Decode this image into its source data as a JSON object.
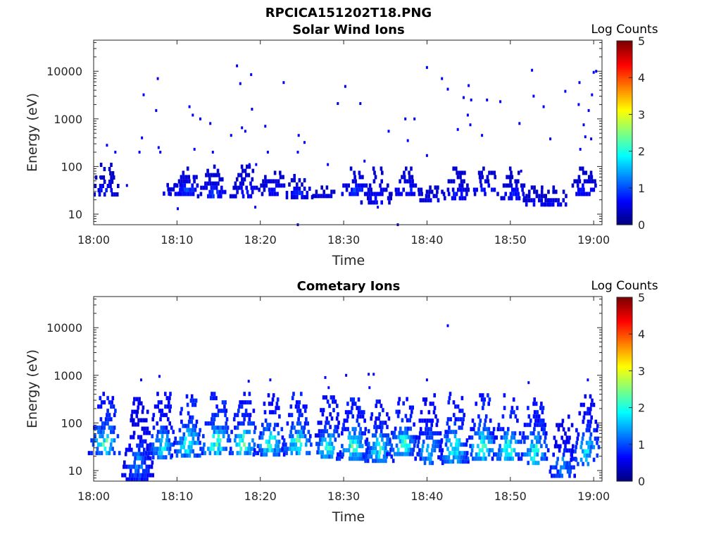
{
  "figure": {
    "title": "RPCICA151202T18.PNG"
  },
  "chart_data": [
    {
      "type": "heatmap",
      "title": "Solar Wind Ions",
      "xlabel": "Time",
      "ylabel": "Energy (eV)",
      "x_ticks": [
        "18:00",
        "18:10",
        "18:20",
        "18:30",
        "18:40",
        "18:50",
        "19:00"
      ],
      "x_tick_minutes": [
        0,
        10,
        20,
        30,
        40,
        50,
        60
      ],
      "xlim_minutes": [
        0,
        61
      ],
      "y_scale": "log",
      "y_ticks": [
        "10",
        "100",
        "1000",
        "10000"
      ],
      "y_tick_values": [
        10,
        100,
        1000,
        10000
      ],
      "ylim": [
        6,
        45000
      ],
      "colorbar": {
        "label": "Log Counts",
        "ticks": [
          "0",
          "1",
          "2",
          "3",
          "4",
          "5"
        ],
        "range": [
          0,
          5
        ],
        "colormap": "jet"
      },
      "bursts": [
        {
          "t": 1.5,
          "e_lo": 25,
          "e_hi": 120,
          "lvl": 0.55
        },
        {
          "t": 9.5,
          "e_lo": 25,
          "e_hi": 45,
          "lvl": 0.7
        },
        {
          "t": 11.3,
          "e_lo": 28,
          "e_hi": 100,
          "lvl": 0.8
        },
        {
          "t": 14.5,
          "e_lo": 22,
          "e_hi": 110,
          "lvl": 0.75
        },
        {
          "t": 18.4,
          "e_lo": 22,
          "e_hi": 110,
          "lvl": 0.6
        },
        {
          "t": 21.7,
          "e_lo": 28,
          "e_hi": 100,
          "lvl": 0.6
        },
        {
          "t": 24.7,
          "e_lo": 25,
          "e_hi": 70,
          "lvl": 0.65
        },
        {
          "t": 28.0,
          "e_lo": 25,
          "e_hi": 40,
          "lvl": 0.4
        },
        {
          "t": 31.5,
          "e_lo": 25,
          "e_hi": 100,
          "lvl": 0.8
        },
        {
          "t": 34.2,
          "e_lo": 18,
          "e_hi": 100,
          "lvl": 0.6
        },
        {
          "t": 37.8,
          "e_lo": 28,
          "e_hi": 100,
          "lvl": 0.7
        },
        {
          "t": 41.0,
          "e_lo": 18,
          "e_hi": 40,
          "lvl": 0.6
        },
        {
          "t": 43.8,
          "e_lo": 20,
          "e_hi": 100,
          "lvl": 0.6
        },
        {
          "t": 47.1,
          "e_lo": 25,
          "e_hi": 100,
          "lvl": 0.7
        },
        {
          "t": 50.6,
          "e_lo": 20,
          "e_hi": 100,
          "lvl": 0.6
        },
        {
          "t": 53.2,
          "e_lo": 15,
          "e_hi": 40,
          "lvl": 0.5
        },
        {
          "t": 55.5,
          "e_lo": 15,
          "e_hi": 40,
          "lvl": 0.5
        },
        {
          "t": 59.0,
          "e_lo": 25,
          "e_hi": 100,
          "lvl": 0.6
        }
      ],
      "points": [
        {
          "t": 0.8,
          "e": 60
        },
        {
          "t": 1.6,
          "e": 280
        },
        {
          "t": 2.6,
          "e": 200
        },
        {
          "t": 4.0,
          "e": 40
        },
        {
          "t": 5.5,
          "e": 200
        },
        {
          "t": 5.8,
          "e": 400
        },
        {
          "t": 6.0,
          "e": 3200
        },
        {
          "t": 7.5,
          "e": 1500
        },
        {
          "t": 7.7,
          "e": 7000
        },
        {
          "t": 7.8,
          "e": 250
        },
        {
          "t": 8.0,
          "e": 200
        },
        {
          "t": 10.1,
          "e": 13
        },
        {
          "t": 11.5,
          "e": 1800
        },
        {
          "t": 11.9,
          "e": 1200
        },
        {
          "t": 12.1,
          "e": 230
        },
        {
          "t": 12.8,
          "e": 1000
        },
        {
          "t": 14.0,
          "e": 800
        },
        {
          "t": 14.3,
          "e": 200
        },
        {
          "t": 16.5,
          "e": 450
        },
        {
          "t": 17.2,
          "e": 13000
        },
        {
          "t": 17.6,
          "e": 5500
        },
        {
          "t": 17.8,
          "e": 650
        },
        {
          "t": 18.2,
          "e": 550
        },
        {
          "t": 18.9,
          "e": 8500
        },
        {
          "t": 18.7,
          "e": 110
        },
        {
          "t": 19.0,
          "e": 1600
        },
        {
          "t": 19.5,
          "e": 110
        },
        {
          "t": 19.4,
          "e": 14
        },
        {
          "t": 20.6,
          "e": 700
        },
        {
          "t": 20.9,
          "e": 200
        },
        {
          "t": 22.8,
          "e": 5800
        },
        {
          "t": 24.6,
          "e": 450
        },
        {
          "t": 24.5,
          "e": 200
        },
        {
          "t": 25.3,
          "e": 320
        },
        {
          "t": 24.5,
          "e": 6
        },
        {
          "t": 28.1,
          "e": 110
        },
        {
          "t": 29.3,
          "e": 2100
        },
        {
          "t": 30.2,
          "e": 4800
        },
        {
          "t": 32.0,
          "e": 2100
        },
        {
          "t": 32.5,
          "e": 130
        },
        {
          "t": 34.1,
          "e": 14
        },
        {
          "t": 35.4,
          "e": 550
        },
        {
          "t": 36.5,
          "e": 6
        },
        {
          "t": 37.4,
          "e": 1000
        },
        {
          "t": 37.7,
          "e": 350
        },
        {
          "t": 38.5,
          "e": 1000
        },
        {
          "t": 40.0,
          "e": 12000
        },
        {
          "t": 40.0,
          "e": 170
        },
        {
          "t": 41.8,
          "e": 7000
        },
        {
          "t": 42.5,
          "e": 4200
        },
        {
          "t": 43.7,
          "e": 600
        },
        {
          "t": 44.4,
          "e": 2800
        },
        {
          "t": 44.9,
          "e": 1200
        },
        {
          "t": 45.2,
          "e": 750
        },
        {
          "t": 45.0,
          "e": 5000
        },
        {
          "t": 45.3,
          "e": 2500
        },
        {
          "t": 46.6,
          "e": 450
        },
        {
          "t": 47.2,
          "e": 2500
        },
        {
          "t": 48.8,
          "e": 2300
        },
        {
          "t": 51.1,
          "e": 800
        },
        {
          "t": 51.3,
          "e": 80
        },
        {
          "t": 52.6,
          "e": 10500
        },
        {
          "t": 52.8,
          "e": 3000
        },
        {
          "t": 54.0,
          "e": 1800
        },
        {
          "t": 54.8,
          "e": 380
        },
        {
          "t": 56.6,
          "e": 3800
        },
        {
          "t": 58.3,
          "e": 5800
        },
        {
          "t": 58.2,
          "e": 2000
        },
        {
          "t": 58.8,
          "e": 750
        },
        {
          "t": 59.0,
          "e": 420
        },
        {
          "t": 59.4,
          "e": 1500
        },
        {
          "t": 59.8,
          "e": 3200
        },
        {
          "t": 60.0,
          "e": 9500
        },
        {
          "t": 60.3,
          "e": 10000
        },
        {
          "t": 59.7,
          "e": 380
        },
        {
          "t": 58.4,
          "e": 230
        }
      ]
    },
    {
      "type": "heatmap",
      "title": "Cometary Ions",
      "xlabel": "Time",
      "ylabel": "Energy (eV)",
      "x_ticks": [
        "18:00",
        "18:10",
        "18:20",
        "18:30",
        "18:40",
        "18:50",
        "19:00"
      ],
      "x_tick_minutes": [
        0,
        10,
        20,
        30,
        40,
        50,
        60
      ],
      "xlim_minutes": [
        0,
        61
      ],
      "y_scale": "log",
      "y_ticks": [
        "10",
        "100",
        "1000",
        "10000"
      ],
      "y_tick_values": [
        10,
        100,
        1000,
        10000
      ],
      "ylim": [
        6,
        45000
      ],
      "colorbar": {
        "label": "Log Counts",
        "ticks": [
          "0",
          "1",
          "2",
          "3",
          "4",
          "5"
        ],
        "range": [
          0,
          5
        ],
        "colormap": "jet"
      },
      "bursts": [
        {
          "t": 1.5,
          "e_lo": 22,
          "e_hi": 450,
          "lvl": 2.2
        },
        {
          "t": 5.5,
          "e_lo": 7,
          "e_hi": 350,
          "lvl": 1.2
        },
        {
          "t": 8.3,
          "e_lo": 18,
          "e_hi": 450,
          "lvl": 1.8
        },
        {
          "t": 11.5,
          "e_lo": 22,
          "e_hi": 400,
          "lvl": 2.2
        },
        {
          "t": 14.8,
          "e_lo": 22,
          "e_hi": 450,
          "lvl": 2.5
        },
        {
          "t": 18.1,
          "e_lo": 22,
          "e_hi": 450,
          "lvl": 2.3
        },
        {
          "t": 21.3,
          "e_lo": 22,
          "e_hi": 420,
          "lvl": 2.1
        },
        {
          "t": 24.6,
          "e_lo": 22,
          "e_hi": 450,
          "lvl": 2.2
        },
        {
          "t": 28.2,
          "e_lo": 18,
          "e_hi": 380,
          "lvl": 2.0
        },
        {
          "t": 31.3,
          "e_lo": 18,
          "e_hi": 420,
          "lvl": 2.2
        },
        {
          "t": 34.4,
          "e_lo": 16,
          "e_hi": 380,
          "lvl": 2.1
        },
        {
          "t": 37.3,
          "e_lo": 22,
          "e_hi": 350,
          "lvl": 2.2
        },
        {
          "t": 40.3,
          "e_lo": 14,
          "e_hi": 420,
          "lvl": 1.6
        },
        {
          "t": 43.4,
          "e_lo": 16,
          "e_hi": 450,
          "lvl": 2.1
        },
        {
          "t": 46.7,
          "e_lo": 18,
          "e_hi": 420,
          "lvl": 2.3
        },
        {
          "t": 49.9,
          "e_lo": 16,
          "e_hi": 420,
          "lvl": 2.1
        },
        {
          "t": 53.0,
          "e_lo": 14,
          "e_hi": 420,
          "lvl": 2.1
        },
        {
          "t": 56.4,
          "e_lo": 7,
          "e_hi": 150,
          "lvl": 1.3
        },
        {
          "t": 59.3,
          "e_lo": 14,
          "e_hi": 400,
          "lvl": 1.7
        }
      ],
      "points": [
        {
          "t": 5.7,
          "e": 800
        },
        {
          "t": 7.9,
          "e": 950
        },
        {
          "t": 18.6,
          "e": 750
        },
        {
          "t": 21.2,
          "e": 800
        },
        {
          "t": 27.8,
          "e": 900
        },
        {
          "t": 28.2,
          "e": 550
        },
        {
          "t": 30.3,
          "e": 1000
        },
        {
          "t": 33.0,
          "e": 1050
        },
        {
          "t": 33.6,
          "e": 1050
        },
        {
          "t": 33.1,
          "e": 550
        },
        {
          "t": 40.0,
          "e": 800
        },
        {
          "t": 42.5,
          "e": 11000
        },
        {
          "t": 52.2,
          "e": 700
        },
        {
          "t": 59.3,
          "e": 800
        }
      ]
    }
  ]
}
